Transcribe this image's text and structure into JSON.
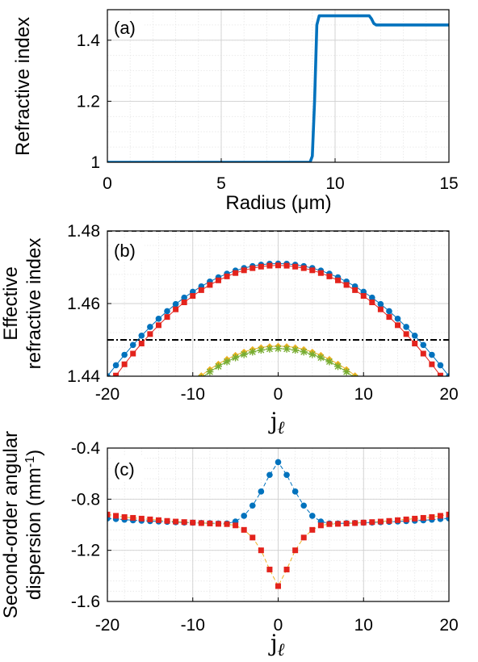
{
  "chart_data": [
    {
      "type": "line",
      "panel_label": "(a)",
      "xlabel": "Radius (μm)",
      "ylabel": "Refractive index",
      "xlim": [
        0,
        15
      ],
      "ylim": [
        1,
        1.5
      ],
      "xticks": [
        "0",
        "5",
        "10",
        "15"
      ],
      "yticks": [
        "1",
        "1.2",
        "1.4"
      ],
      "grid": true,
      "series": [
        {
          "color": "#0072BD",
          "x": [
            0,
            8.9,
            9.0,
            9.1,
            9.2,
            9.3,
            11.5,
            11.6,
            11.7,
            11.8,
            15
          ],
          "y": [
            1.0,
            1.0,
            1.02,
            1.2,
            1.45,
            1.48,
            1.48,
            1.47,
            1.455,
            1.45,
            1.45
          ]
        }
      ]
    },
    {
      "type": "line",
      "panel_label": "(b)",
      "xlabel": "j",
      "xlabel_sub": "ℓ",
      "ylabel": [
        "Effective",
        "refractive index"
      ],
      "xlim": [
        -20,
        20
      ],
      "ylim": [
        1.44,
        1.48
      ],
      "xticks": [
        "-20",
        "-10",
        "0",
        "10",
        "20"
      ],
      "yticks": [
        "1.44",
        "1.46",
        "1.48"
      ],
      "grid": true,
      "hlines": [
        {
          "y": 1.48,
          "style": "dashed",
          "color": "#000000"
        },
        {
          "y": 1.45,
          "style": "dashdot",
          "color": "#000000"
        }
      ],
      "series": [
        {
          "marker": "circle",
          "color": "#0072BD",
          "peak": 1.471,
          "coef": 7.75e-05,
          "xrange": [
            -20,
            20
          ]
        },
        {
          "marker": "square",
          "color": "#E3231C",
          "peak": 1.4705,
          "coef": 8.4e-05,
          "xrange": [
            -19,
            19
          ]
        },
        {
          "marker": "diamond",
          "color": "#EDB120",
          "peak": 1.4483,
          "coef": 0.0001,
          "xrange": [
            -12,
            12
          ]
        },
        {
          "marker": "star",
          "color": "#77AC30",
          "peak": 1.4476,
          "coef": 0.0001,
          "xrange": [
            -12,
            12
          ]
        }
      ]
    },
    {
      "type": "line",
      "panel_label": "(c)",
      "xlabel": "j",
      "xlabel_sub": "ℓ",
      "ylabel": [
        "Second-order angular",
        "dispersion (mm",
        "-1",
        ")"
      ],
      "xlim": [
        -20,
        20
      ],
      "ylim": [
        -1.6,
        -0.4
      ],
      "xticks": [
        "-20",
        "-10",
        "0",
        "10",
        "20"
      ],
      "yticks": [
        "-0.4",
        "-0.8",
        "-1.2",
        "-1.6"
      ],
      "grid": true,
      "series": [
        {
          "marker": "circle",
          "color": "#0072BD",
          "line_color": "#0072BD",
          "x": [
            -20,
            -19,
            -18,
            -17,
            -16,
            -15,
            -14,
            -13,
            -12,
            -11,
            -10,
            -9,
            -8,
            -7,
            -6,
            -5,
            -4,
            -3,
            -2,
            -1,
            0,
            1,
            2,
            3,
            4,
            5,
            6,
            7,
            8,
            9,
            10,
            11,
            12,
            13,
            14,
            15,
            16,
            17,
            18,
            19,
            20
          ],
          "y": [
            -0.95,
            -0.955,
            -0.96,
            -0.965,
            -0.968,
            -0.971,
            -0.974,
            -0.977,
            -0.98,
            -0.982,
            -0.984,
            -0.986,
            -0.988,
            -0.99,
            -0.99,
            -0.975,
            -0.93,
            -0.85,
            -0.74,
            -0.61,
            -0.51,
            -0.61,
            -0.74,
            -0.85,
            -0.93,
            -0.975,
            -0.99,
            -0.99,
            -0.988,
            -0.986,
            -0.984,
            -0.982,
            -0.98,
            -0.977,
            -0.974,
            -0.971,
            -0.968,
            -0.965,
            -0.96,
            -0.955,
            -0.95
          ]
        },
        {
          "marker": "square",
          "color": "#E3231C",
          "line_color": "#EDB120",
          "x": [
            -20,
            -19,
            -18,
            -17,
            -16,
            -15,
            -14,
            -13,
            -12,
            -11,
            -10,
            -9,
            -8,
            -7,
            -6,
            -5,
            -4,
            -3,
            -2,
            -1,
            0,
            1,
            2,
            3,
            4,
            5,
            6,
            7,
            8,
            9,
            10,
            11,
            12,
            13,
            14,
            15,
            16,
            17,
            18,
            19,
            20
          ],
          "y": [
            -0.92,
            -0.93,
            -0.94,
            -0.946,
            -0.952,
            -0.958,
            -0.964,
            -0.97,
            -0.975,
            -0.979,
            -0.983,
            -0.987,
            -0.99,
            -0.993,
            -0.995,
            -1.005,
            -1.04,
            -1.1,
            -1.2,
            -1.35,
            -1.48,
            -1.35,
            -1.2,
            -1.1,
            -1.04,
            -1.005,
            -0.995,
            -0.993,
            -0.99,
            -0.987,
            -0.983,
            -0.979,
            -0.975,
            -0.97,
            -0.964,
            -0.958,
            -0.952,
            -0.946,
            -0.94,
            -0.93,
            -0.92
          ]
        }
      ]
    }
  ]
}
